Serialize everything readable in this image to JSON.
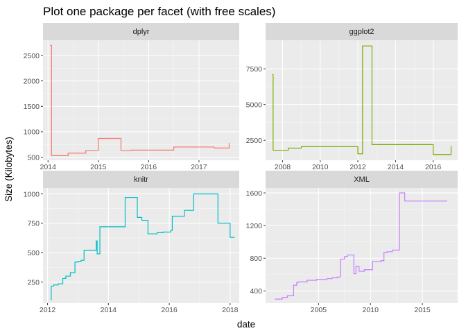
{
  "chart_data": {
    "type": "line",
    "title": "Plot one package per facet (with free scales)",
    "xlabel": "date",
    "ylabel": "Size (Kilobytes)",
    "grid": true,
    "legend": "none",
    "facets": [
      {
        "name": "dplyr",
        "color": "#F8766D",
        "xlim": [
          2013.9,
          2017.8
        ],
        "ylim": [
          440,
          2800
        ],
        "x_ticks": [
          2014,
          2015,
          2016,
          2017
        ],
        "x_tick_labels": [
          "2014",
          "2015",
          "2016",
          "2017"
        ],
        "y_ticks": [
          500,
          1000,
          1500,
          2000,
          2500
        ],
        "y_tick_labels": [
          "500",
          "1000",
          "1500",
          "2000",
          "2500"
        ],
        "steps": [
          [
            2014.04,
            2700
          ],
          [
            2014.07,
            530
          ],
          [
            2014.4,
            580
          ],
          [
            2014.75,
            630
          ],
          [
            2015.0,
            870
          ],
          [
            2015.45,
            630
          ],
          [
            2015.65,
            640
          ],
          [
            2016.5,
            700
          ],
          [
            2017.3,
            680
          ],
          [
            2017.6,
            780
          ]
        ],
        "x_end": 2017.6
      },
      {
        "name": "ggplot2",
        "color": "#7CAE00",
        "xlim": [
          2007.1,
          2017.3
        ],
        "ylim": [
          1100,
          9500
        ],
        "x_ticks": [
          2008,
          2010,
          2012,
          2014,
          2016
        ],
        "x_tick_labels": [
          "2008",
          "2010",
          "2012",
          "2014",
          "2016"
        ],
        "y_ticks": [
          2500,
          5000,
          7500
        ],
        "y_tick_labels": [
          "2500",
          "5000",
          "7500"
        ],
        "steps": [
          [
            2007.45,
            7100
          ],
          [
            2007.5,
            1800
          ],
          [
            2008.3,
            1950
          ],
          [
            2009.0,
            2050
          ],
          [
            2012.0,
            1550
          ],
          [
            2012.25,
            9100
          ],
          [
            2012.75,
            2200
          ],
          [
            2016.0,
            1500
          ],
          [
            2016.95,
            2100
          ]
        ],
        "x_end": 2016.95
      },
      {
        "name": "knitr",
        "color": "#00BFC4",
        "xlim": [
          2011.85,
          2018.3
        ],
        "ylim": [
          70,
          1050
        ],
        "x_ticks": [
          2012,
          2014,
          2016,
          2018
        ],
        "x_tick_labels": [
          "2012",
          "2014",
          "2016",
          "2018"
        ],
        "y_ticks": [
          250,
          500,
          750,
          1000
        ],
        "y_tick_labels": [
          "250",
          "500",
          "750",
          "1000"
        ],
        "steps": [
          [
            2012.1,
            100
          ],
          [
            2012.12,
            215
          ],
          [
            2012.2,
            225
          ],
          [
            2012.35,
            235
          ],
          [
            2012.5,
            280
          ],
          [
            2012.6,
            300
          ],
          [
            2012.75,
            330
          ],
          [
            2012.9,
            420
          ],
          [
            2013.0,
            425
          ],
          [
            2013.1,
            435
          ],
          [
            2013.2,
            520
          ],
          [
            2013.6,
            600
          ],
          [
            2013.63,
            490
          ],
          [
            2013.72,
            720
          ],
          [
            2013.85,
            720
          ],
          [
            2014.55,
            970
          ],
          [
            2014.95,
            800
          ],
          [
            2015.1,
            775
          ],
          [
            2015.3,
            660
          ],
          [
            2015.6,
            670
          ],
          [
            2015.8,
            675
          ],
          [
            2016.05,
            690
          ],
          [
            2016.1,
            810
          ],
          [
            2016.5,
            860
          ],
          [
            2016.8,
            1000
          ],
          [
            2017.6,
            750
          ],
          [
            2018.0,
            630
          ]
        ],
        "x_end": 2018.15
      },
      {
        "name": "XML",
        "color": "#C77CFF",
        "xlim": [
          1999.9,
          2018.4
        ],
        "ylim": [
          250,
          1660
        ],
        "x_ticks": [
          2005,
          2010,
          2015
        ],
        "x_tick_labels": [
          "2005",
          "2010",
          "2015"
        ],
        "y_ticks": [
          400,
          800,
          1200,
          1600
        ],
        "y_tick_labels": [
          "400",
          "800",
          "1200",
          "1600"
        ],
        "steps": [
          [
            2000.8,
            300
          ],
          [
            2001.5,
            320
          ],
          [
            2002.0,
            340
          ],
          [
            2002.6,
            470
          ],
          [
            2002.9,
            500
          ],
          [
            2003.0,
            510
          ],
          [
            2003.9,
            530
          ],
          [
            2004.8,
            540
          ],
          [
            2005.8,
            550
          ],
          [
            2006.3,
            560
          ],
          [
            2006.8,
            570
          ],
          [
            2007.1,
            790
          ],
          [
            2007.5,
            820
          ],
          [
            2007.8,
            840
          ],
          [
            2008.4,
            610
          ],
          [
            2008.6,
            700
          ],
          [
            2008.9,
            640
          ],
          [
            2009.4,
            660
          ],
          [
            2010.2,
            760
          ],
          [
            2011.0,
            770
          ],
          [
            2011.3,
            870
          ],
          [
            2011.6,
            880
          ],
          [
            2012.1,
            900
          ],
          [
            2012.8,
            1600
          ],
          [
            2013.3,
            1500
          ]
        ],
        "x_end": 2017.4
      }
    ]
  }
}
